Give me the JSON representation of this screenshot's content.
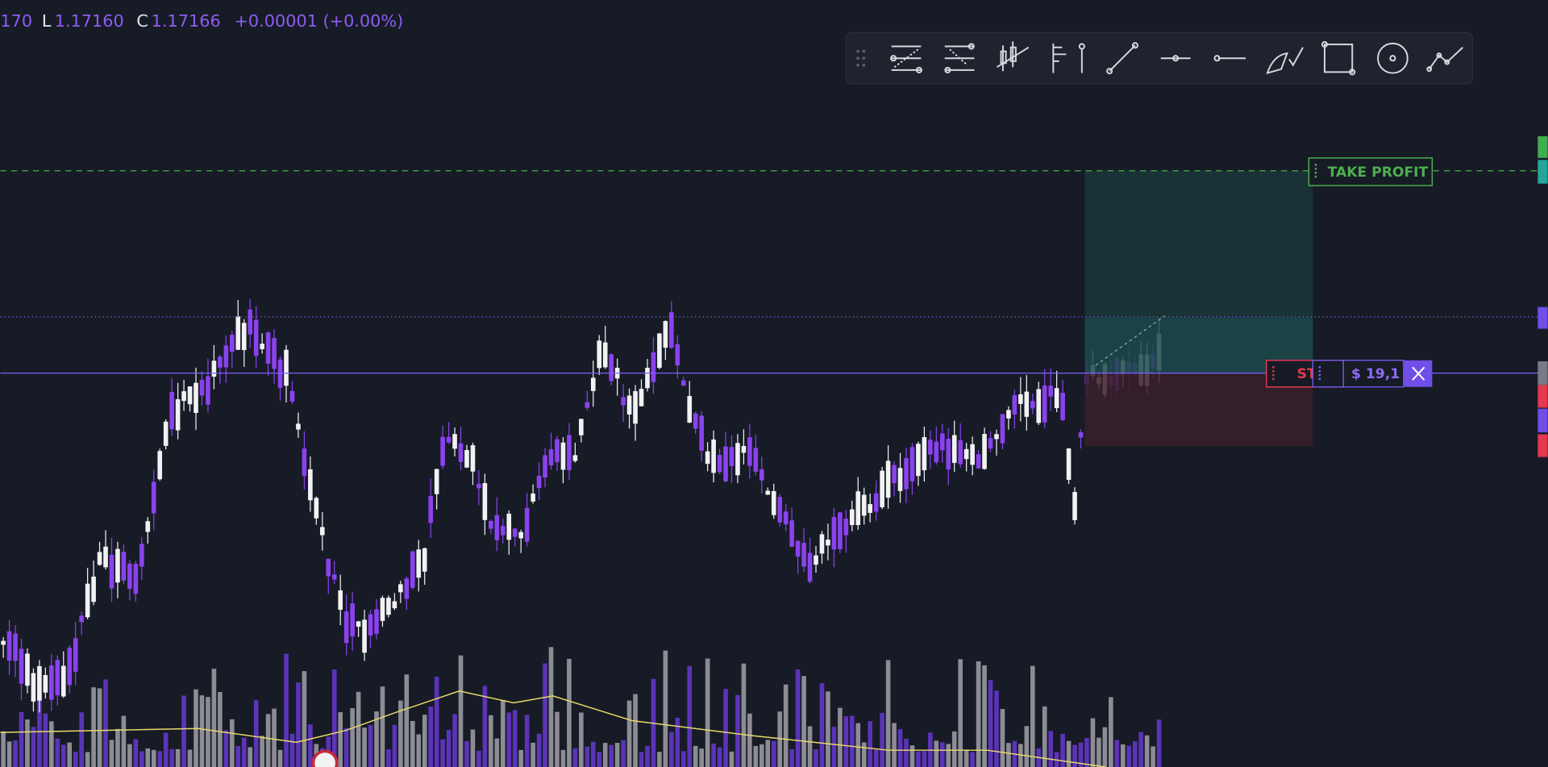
{
  "header": {
    "ohlc": {
      "partial_value": "170",
      "low_label": "L",
      "low": "1.17160",
      "close_label": "C",
      "close": "1.17166",
      "change": "+0.00001 (+0.00%)"
    }
  },
  "orders": {
    "take_profit": "TAKE PROFIT",
    "stop_loss": "ST",
    "amount": "$ 19,1"
  }
}
